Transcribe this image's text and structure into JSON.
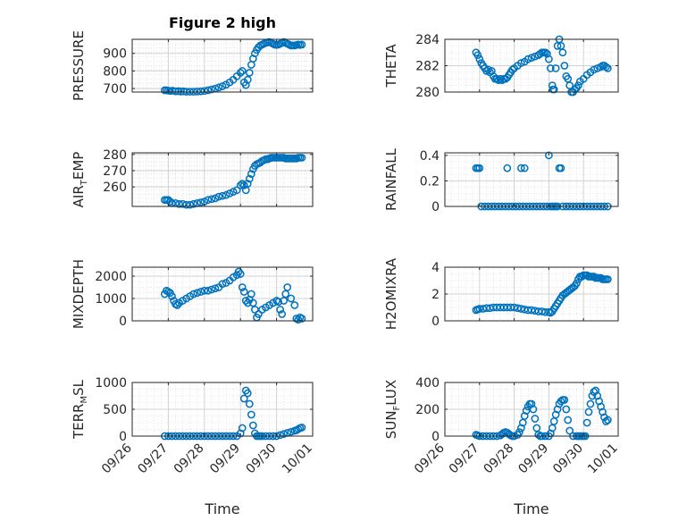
{
  "chart_data": [
    {
      "type": "scatter",
      "title": "Figure 2 high",
      "ylabel": "PRESSURE",
      "ylim": [
        680,
        980
      ],
      "yticks": [
        700,
        800,
        900
      ],
      "xlim": [
        0,
        5
      ],
      "grid": true,
      "series": [
        {
          "x": [
            0.9,
            0.95,
            1.0,
            1.05,
            1.12,
            1.2,
            1.28,
            1.35,
            1.42,
            1.5,
            1.6,
            1.7,
            1.8,
            1.9,
            2.0,
            2.1,
            2.2,
            2.3,
            2.4,
            2.5,
            2.6,
            2.7,
            2.8,
            2.9,
            3.0,
            3.05,
            3.1,
            3.15,
            3.2,
            3.25,
            3.3,
            3.35,
            3.4,
            3.45,
            3.5,
            3.55,
            3.6,
            3.65,
            3.7,
            3.75,
            3.8,
            3.85,
            3.9,
            3.95,
            4.0,
            4.05,
            4.1,
            4.15,
            4.2,
            4.25,
            4.3,
            4.35,
            4.4,
            4.45,
            4.5,
            4.55,
            4.6,
            4.65,
            4.7
          ],
          "y": [
            690,
            690,
            688,
            686,
            688,
            684,
            685,
            683,
            684,
            682,
            682,
            682,
            683,
            684,
            686,
            690,
            695,
            700,
            706,
            713,
            722,
            735,
            750,
            770,
            790,
            800,
            735,
            720,
            750,
            790,
            835,
            870,
            900,
            920,
            935,
            945,
            950,
            955,
            960,
            962,
            965,
            960,
            955,
            950,
            948,
            950,
            955,
            960,
            965,
            960,
            955,
            950,
            945,
            945,
            945,
            948,
            950,
            948,
            950
          ]
        }
      ]
    },
    {
      "type": "scatter",
      "ylabel": "THETA",
      "ylim": [
        280,
        284
      ],
      "yticks": [
        280,
        282,
        284
      ],
      "xlim": [
        0,
        5
      ],
      "grid": true,
      "series": [
        {
          "x": [
            0.9,
            0.95,
            1.0,
            1.05,
            1.1,
            1.15,
            1.2,
            1.25,
            1.3,
            1.35,
            1.4,
            1.45,
            1.5,
            1.55,
            1.6,
            1.65,
            1.7,
            1.75,
            1.8,
            1.85,
            1.9,
            1.95,
            2.0,
            2.1,
            2.2,
            2.3,
            2.4,
            2.5,
            2.6,
            2.7,
            2.75,
            2.8,
            2.85,
            2.9,
            2.95,
            3.0,
            3.05,
            3.1,
            3.12,
            3.15,
            3.2,
            3.25,
            3.3,
            3.35,
            3.4,
            3.45,
            3.5,
            3.55,
            3.6,
            3.65,
            3.7,
            3.75,
            3.8,
            3.85,
            3.9,
            4.0,
            4.1,
            4.2,
            4.3,
            4.4,
            4.5,
            4.55,
            4.6,
            4.65,
            4.7
          ],
          "y": [
            283.0,
            282.8,
            282.5,
            282.2,
            282.0,
            281.8,
            281.6,
            281.7,
            281.5,
            281.6,
            281.2,
            281.0,
            281.0,
            280.9,
            281.0,
            280.9,
            281.0,
            281.0,
            281.1,
            281.3,
            281.5,
            281.7,
            281.8,
            282.0,
            282.2,
            282.3,
            282.5,
            282.6,
            282.7,
            282.8,
            282.9,
            283.0,
            283.0,
            283.0,
            282.9,
            282.5,
            281.8,
            280.5,
            280.2,
            280.2,
            281.8,
            283.5,
            284.0,
            283.5,
            283.0,
            282.0,
            281.2,
            281.0,
            280.5,
            280.0,
            280.0,
            280.2,
            280.3,
            280.5,
            280.8,
            281.0,
            281.3,
            281.5,
            281.7,
            281.8,
            281.9,
            282.0,
            282.0,
            281.9,
            281.8
          ]
        }
      ]
    },
    {
      "type": "scatter",
      "ylabel": "AIR_TEMP",
      "ylim": [
        248,
        281
      ],
      "yticks": [
        260,
        270,
        280
      ],
      "xlim": [
        0,
        5
      ],
      "grid": true,
      "series": [
        {
          "x": [
            0.9,
            0.95,
            1.0,
            1.05,
            1.1,
            1.2,
            1.3,
            1.4,
            1.5,
            1.6,
            1.7,
            1.8,
            1.9,
            2.0,
            2.1,
            2.2,
            2.3,
            2.4,
            2.5,
            2.6,
            2.7,
            2.8,
            2.9,
            3.0,
            3.05,
            3.1,
            3.15,
            3.2,
            3.25,
            3.3,
            3.35,
            3.4,
            3.45,
            3.5,
            3.55,
            3.6,
            3.65,
            3.7,
            3.75,
            3.8,
            3.85,
            3.9,
            3.95,
            4.0,
            4.05,
            4.1,
            4.15,
            4.2,
            4.25,
            4.3,
            4.35,
            4.4,
            4.45,
            4.5,
            4.55,
            4.6,
            4.65,
            4.7
          ],
          "y": [
            252,
            252,
            252,
            251,
            250,
            250,
            249.5,
            249.5,
            249,
            249,
            249.5,
            250,
            250.5,
            251,
            252,
            252.5,
            253,
            254,
            254.5,
            255,
            256,
            257,
            258,
            261,
            262,
            261,
            258,
            262,
            265,
            268,
            271,
            273,
            274,
            274.5,
            275,
            276,
            276.5,
            277,
            277,
            277.5,
            278,
            278,
            278,
            278,
            278,
            278,
            278,
            278,
            277.5,
            277.5,
            277.5,
            277.5,
            277.5,
            277.5,
            277.5,
            278,
            278,
            278
          ]
        }
      ]
    },
    {
      "type": "scatter",
      "ylabel": "RAINFALL",
      "ylim": [
        0,
        0.42
      ],
      "yticks": [
        0,
        0.2,
        0.4
      ],
      "xlim": [
        0,
        5
      ],
      "grid": true,
      "series": [
        {
          "x": [
            0.9,
            0.95,
            1.0,
            1.05,
            1.15,
            1.25,
            1.35,
            1.45,
            1.55,
            1.65,
            1.75,
            1.8,
            1.85,
            1.95,
            2.05,
            2.15,
            2.2,
            2.25,
            2.3,
            2.35,
            2.45,
            2.55,
            2.65,
            2.75,
            2.85,
            2.95,
            3.0,
            3.05,
            3.1,
            3.15,
            3.2,
            3.25,
            3.3,
            3.35,
            3.4,
            3.5,
            3.6,
            3.7,
            3.8,
            3.9,
            4.0,
            4.1,
            4.2,
            4.3,
            4.4,
            4.5,
            4.6,
            4.7
          ],
          "y": [
            0.3,
            0.3,
            0.3,
            0,
            0,
            0,
            0,
            0,
            0,
            0,
            0,
            0.3,
            0,
            0,
            0,
            0,
            0.3,
            0,
            0.3,
            0,
            0,
            0,
            0,
            0,
            0,
            0,
            0.4,
            0,
            0,
            0,
            0,
            0,
            0.3,
            0.3,
            0,
            0,
            0,
            0,
            0,
            0,
            0,
            0,
            0,
            0,
            0,
            0,
            0,
            0
          ]
        }
      ]
    },
    {
      "type": "scatter",
      "ylabel": "MIXDEPTH",
      "ylim": [
        0,
        2400
      ],
      "yticks": [
        0,
        1000,
        2000
      ],
      "xlim": [
        0,
        5
      ],
      "grid": true,
      "series": [
        {
          "x": [
            0.9,
            0.95,
            1.0,
            1.05,
            1.1,
            1.15,
            1.2,
            1.25,
            1.3,
            1.4,
            1.5,
            1.6,
            1.7,
            1.8,
            1.9,
            2.0,
            2.1,
            2.2,
            2.3,
            2.4,
            2.5,
            2.6,
            2.7,
            2.8,
            2.9,
            2.95,
            3.0,
            3.05,
            3.1,
            3.15,
            3.2,
            3.25,
            3.3,
            3.35,
            3.4,
            3.45,
            3.5,
            3.6,
            3.7,
            3.8,
            3.9,
            4.0,
            4.05,
            4.1,
            4.15,
            4.2,
            4.25,
            4.3,
            4.4,
            4.5,
            4.55,
            4.6,
            4.65,
            4.7
          ],
          "y": [
            1200,
            1350,
            1300,
            1250,
            1100,
            900,
            750,
            700,
            800,
            900,
            1000,
            1100,
            1200,
            1250,
            1300,
            1350,
            1350,
            1400,
            1450,
            1500,
            1650,
            1700,
            1800,
            1950,
            2050,
            2200,
            2100,
            1500,
            1300,
            900,
            800,
            950,
            1200,
            800,
            500,
            150,
            300,
            500,
            600,
            700,
            800,
            900,
            850,
            500,
            300,
            900,
            1200,
            1500,
            1000,
            700,
            100,
            50,
            150,
            100
          ]
        }
      ]
    },
    {
      "type": "scatter",
      "ylabel": "H2OMIXRA",
      "ylim": [
        0,
        4
      ],
      "yticks": [
        0,
        2,
        4
      ],
      "xlim": [
        0,
        5
      ],
      "grid": true,
      "series": [
        {
          "x": [
            0.9,
            0.95,
            1.0,
            1.1,
            1.2,
            1.3,
            1.4,
            1.5,
            1.6,
            1.7,
            1.8,
            1.9,
            2.0,
            2.1,
            2.2,
            2.3,
            2.4,
            2.5,
            2.6,
            2.7,
            2.8,
            2.9,
            3.0,
            3.05,
            3.1,
            3.15,
            3.2,
            3.25,
            3.3,
            3.35,
            3.4,
            3.45,
            3.5,
            3.55,
            3.6,
            3.65,
            3.7,
            3.75,
            3.8,
            3.85,
            3.9,
            3.95,
            4.0,
            4.05,
            4.1,
            4.15,
            4.2,
            4.25,
            4.3,
            4.35,
            4.4,
            4.45,
            4.5,
            4.55,
            4.6,
            4.65,
            4.7
          ],
          "y": [
            0.8,
            0.85,
            0.9,
            0.9,
            0.95,
            0.95,
            1.0,
            1.0,
            1.0,
            1.0,
            1.0,
            1.0,
            1.0,
            0.95,
            0.9,
            0.85,
            0.8,
            0.8,
            0.75,
            0.7,
            0.7,
            0.65,
            0.65,
            0.6,
            0.7,
            0.9,
            1.1,
            1.3,
            1.5,
            1.7,
            1.9,
            2.0,
            2.1,
            2.2,
            2.3,
            2.4,
            2.5,
            2.6,
            2.8,
            3.1,
            3.3,
            3.3,
            3.4,
            3.4,
            3.4,
            3.3,
            3.3,
            3.3,
            3.3,
            3.2,
            3.2,
            3.2,
            3.2,
            3.1,
            3.1,
            3.1,
            3.1
          ]
        }
      ]
    },
    {
      "type": "scatter",
      "ylabel": "TERR_MSL",
      "ylim": [
        0,
        1000
      ],
      "yticks": [
        0,
        500,
        1000
      ],
      "xlim": [
        0,
        5
      ],
      "xticks": [
        0,
        1,
        2,
        3,
        4,
        5
      ],
      "xticklabels": [
        "09/26",
        "09/27",
        "09/28",
        "09/29",
        "09/30",
        "10/01"
      ],
      "xlabel": "Time",
      "grid": true,
      "series": [
        {
          "x": [
            0.9,
            1.0,
            1.1,
            1.2,
            1.3,
            1.4,
            1.5,
            1.6,
            1.7,
            1.8,
            1.9,
            2.0,
            2.1,
            2.2,
            2.3,
            2.4,
            2.5,
            2.6,
            2.7,
            2.8,
            2.9,
            3.0,
            3.05,
            3.1,
            3.15,
            3.2,
            3.25,
            3.3,
            3.35,
            3.4,
            3.45,
            3.5,
            3.55,
            3.6,
            3.7,
            3.8,
            3.9,
            4.0,
            4.1,
            4.2,
            4.3,
            4.4,
            4.5,
            4.55,
            4.6,
            4.65,
            4.7
          ],
          "y": [
            0,
            0,
            0,
            0,
            0,
            0,
            0,
            0,
            0,
            0,
            0,
            0,
            0,
            0,
            0,
            0,
            0,
            0,
            0,
            0,
            0,
            50,
            150,
            700,
            850,
            800,
            600,
            400,
            200,
            50,
            0,
            0,
            0,
            0,
            0,
            0,
            0,
            0,
            20,
            40,
            60,
            80,
            100,
            110,
            130,
            150,
            160
          ]
        }
      ]
    },
    {
      "type": "scatter",
      "ylabel": "SUN_FLUX",
      "ylim": [
        0,
        400
      ],
      "yticks": [
        0,
        200,
        400
      ],
      "xlim": [
        0,
        5
      ],
      "xticks": [
        0,
        1,
        2,
        3,
        4,
        5
      ],
      "xticklabels": [
        "09/26",
        "09/27",
        "09/28",
        "09/29",
        "09/30",
        "10/01"
      ],
      "xlabel": "Time",
      "grid": true,
      "series": [
        {
          "x": [
            0.9,
            0.95,
            1.0,
            1.1,
            1.2,
            1.3,
            1.4,
            1.5,
            1.6,
            1.65,
            1.7,
            1.75,
            1.8,
            1.85,
            1.9,
            1.95,
            2.0,
            2.1,
            2.15,
            2.2,
            2.25,
            2.3,
            2.35,
            2.4,
            2.45,
            2.5,
            2.55,
            2.6,
            2.65,
            2.7,
            2.75,
            2.8,
            2.9,
            3.0,
            3.05,
            3.1,
            3.15,
            3.2,
            3.25,
            3.3,
            3.35,
            3.4,
            3.45,
            3.5,
            3.55,
            3.6,
            3.7,
            3.8,
            3.85,
            3.9,
            3.95,
            4.0,
            4.05,
            4.1,
            4.15,
            4.2,
            4.25,
            4.3,
            4.35,
            4.4,
            4.45,
            4.5,
            4.55,
            4.6,
            4.65,
            4.7
          ],
          "y": [
            10,
            5,
            0,
            0,
            0,
            0,
            0,
            0,
            5,
            15,
            25,
            30,
            25,
            15,
            5,
            0,
            0,
            10,
            30,
            60,
            100,
            150,
            190,
            220,
            240,
            240,
            200,
            130,
            60,
            10,
            0,
            0,
            0,
            0,
            20,
            60,
            110,
            160,
            200,
            240,
            260,
            270,
            270,
            200,
            120,
            40,
            0,
            0,
            0,
            0,
            0,
            0,
            0,
            100,
            180,
            240,
            300,
            330,
            340,
            300,
            260,
            220,
            180,
            140,
            110,
            120
          ]
        }
      ]
    }
  ],
  "colors": {
    "marker": "#0072bd",
    "axis": "#262626",
    "grid": "#dfdfdf"
  }
}
